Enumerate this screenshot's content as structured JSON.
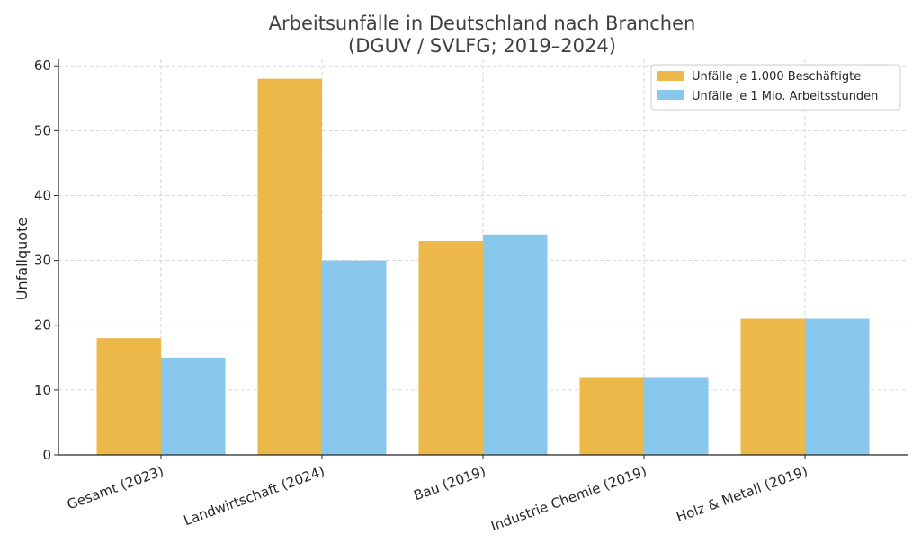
{
  "chart_data": {
    "type": "bar",
    "title": "Arbeitsunfälle in Deutschland nach Branchen",
    "subtitle": "(DGUV / SVLFG; 2019–2024)",
    "xlabel": "",
    "ylabel": "Unfallquote",
    "categories": [
      "Gesamt (2023)",
      "Landwirtschaft (2024)",
      "Bau (2019)",
      "Industrie Chemie (2019)",
      "Holz & Metall (2019)"
    ],
    "series": [
      {
        "name": "Unfälle je 1.000 Beschäftigte",
        "values": [
          18,
          58,
          33,
          12,
          21
        ],
        "color": "#ecb84a"
      },
      {
        "name": "Unfälle je 1 Mio. Arbeitsstunden",
        "values": [
          15,
          30,
          34,
          12,
          21
        ],
        "color": "#89c8ed"
      }
    ],
    "ylim": [
      0,
      61
    ],
    "yticks": [
      0,
      10,
      20,
      30,
      40,
      50,
      60
    ],
    "grid": true,
    "legend_position": "top-right"
  }
}
